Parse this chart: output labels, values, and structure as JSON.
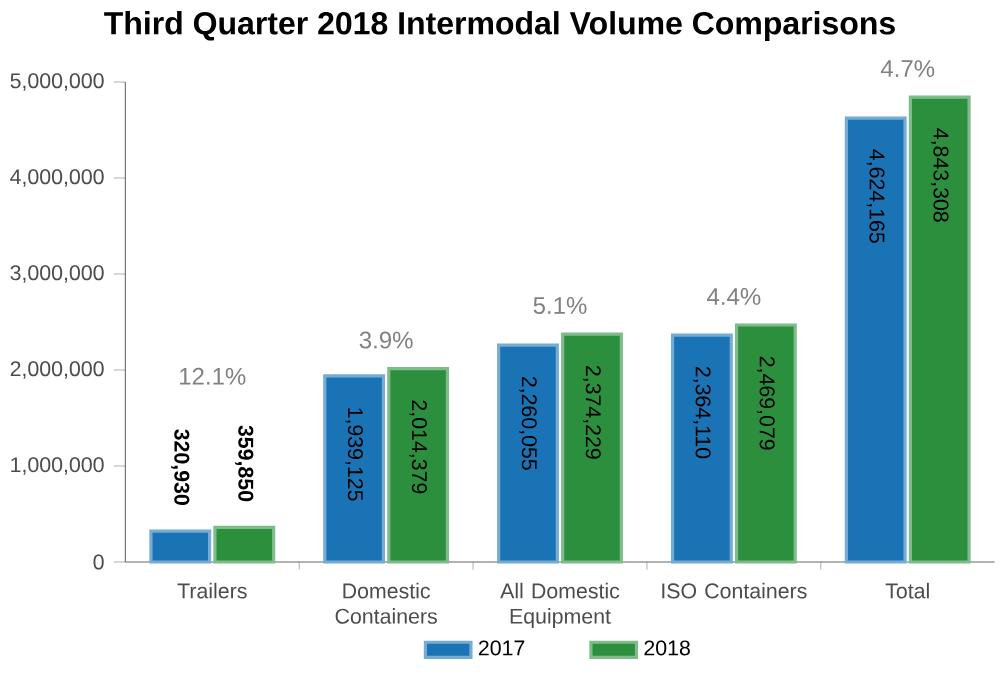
{
  "chart_data": {
    "type": "bar",
    "title": "Third Quarter 2018 Intermodal Volume Comparisons",
    "categories": [
      "Trailers",
      "Domestic Containers",
      "All Domestic Equipment",
      "ISO Containers",
      "Total"
    ],
    "series": [
      {
        "name": "2017",
        "color": "#1a73b5",
        "values": [
          320930,
          1939125,
          2260055,
          2364110,
          4624165
        ],
        "value_labels": [
          "320,930",
          "1,939,125",
          "2,260,055",
          "2,364,110",
          "4,624,165"
        ]
      },
      {
        "name": "2018",
        "color": "#2b8f3e",
        "values": [
          359850,
          2014379,
          2374229,
          2469079,
          4843308
        ],
        "value_labels": [
          "359,850",
          "2,014,379",
          "2,374,229",
          "2,469,079",
          "4,843,308"
        ]
      }
    ],
    "annotations": [
      "12.1%",
      {
        "text": "3.9%",
        "x": "Domestic Containers",
        "y": 2014379
      },
      {
        "text": "5.1%",
        "x": "All Domestic Equipment",
        "y": 2374229
      },
      {
        "text": "4.4%",
        "x": "ISO Containers",
        "y": 2469079
      },
      {
        "text": "4.7%",
        "x": "Total",
        "y": 4843308
      }
    ],
    "ylim": [
      0,
      5000000
    ],
    "yticks": [
      0,
      {
        "value": 1000000,
        "label": "1,000,000"
      },
      {
        "value": 2000000,
        "label": "2,000,000"
      },
      {
        "value": 3000000,
        "label": "3,000,000"
      },
      {
        "value": 4000000,
        "label": "4,000,000"
      },
      {
        "value": 5000000,
        "label": "5,000,000"
      }
    ],
    "grid": false,
    "legend": "bottom"
  }
}
